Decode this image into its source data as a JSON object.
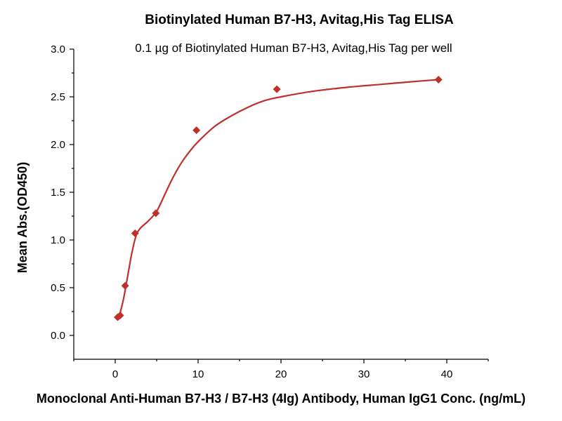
{
  "chart_data": {
    "type": "scatter",
    "title": "Biotinylated Human B7-H3, Avitag,His Tag ELISA",
    "subtitle": "0.1 µg of Biotinylated Human B7-H3, Avitag,His Tag per well",
    "xlabel": "Monoclonal Anti-Human B7-H3 / B7-H3 (4Ig) Antibody, Human IgG1 Conc. (ng/mL)",
    "ylabel": "Mean Abs.(OD450)",
    "xlim": [
      -5,
      45
    ],
    "ylim": [
      -0.25,
      3.0
    ],
    "xticks": [
      0,
      10,
      20,
      30,
      40
    ],
    "yticks": [
      0.0,
      0.5,
      1.0,
      1.5,
      2.0,
      2.5,
      3.0
    ],
    "xtick_labels": [
      "0",
      "10",
      "20",
      "30",
      "40"
    ],
    "ytick_labels": [
      "0.0",
      "0.5",
      "1.0",
      "1.5",
      "2.0",
      "2.5",
      "3.0"
    ],
    "grid": false,
    "marker_color": "#c0302b",
    "curve_color": "#c0302b",
    "points": [
      {
        "x": 0.3,
        "y": 0.19
      },
      {
        "x": 0.6,
        "y": 0.21
      },
      {
        "x": 1.2,
        "y": 0.52
      },
      {
        "x": 2.4,
        "y": 1.07
      },
      {
        "x": 4.9,
        "y": 1.28
      },
      {
        "x": 9.8,
        "y": 2.15
      },
      {
        "x": 19.5,
        "y": 2.58
      },
      {
        "x": 39.0,
        "y": 2.68
      }
    ],
    "fit_curve": [
      {
        "x": 0.3,
        "y": 0.17
      },
      {
        "x": 0.6,
        "y": 0.24
      },
      {
        "x": 1.0,
        "y": 0.38
      },
      {
        "x": 1.5,
        "y": 0.62
      },
      {
        "x": 2.0,
        "y": 0.86
      },
      {
        "x": 2.5,
        "y": 1.04
      },
      {
        "x": 3.0,
        "y": 1.12
      },
      {
        "x": 4.0,
        "y": 1.2
      },
      {
        "x": 5.0,
        "y": 1.3
      },
      {
        "x": 6.0,
        "y": 1.48
      },
      {
        "x": 7.0,
        "y": 1.66
      },
      {
        "x": 8.0,
        "y": 1.81
      },
      {
        "x": 9.0,
        "y": 1.93
      },
      {
        "x": 10.0,
        "y": 2.03
      },
      {
        "x": 12.0,
        "y": 2.19
      },
      {
        "x": 14.0,
        "y": 2.3
      },
      {
        "x": 16.0,
        "y": 2.39
      },
      {
        "x": 18.0,
        "y": 2.46
      },
      {
        "x": 20.0,
        "y": 2.5
      },
      {
        "x": 24.0,
        "y": 2.56
      },
      {
        "x": 28.0,
        "y": 2.6
      },
      {
        "x": 32.0,
        "y": 2.63
      },
      {
        "x": 36.0,
        "y": 2.66
      },
      {
        "x": 39.0,
        "y": 2.68
      }
    ]
  }
}
